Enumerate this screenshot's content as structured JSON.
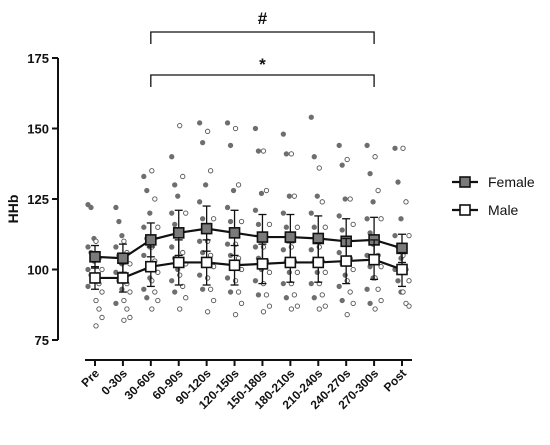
{
  "chart_data": {
    "type": "line",
    "ylabel": "HHb",
    "ylim": [
      75,
      175
    ],
    "yticks": [
      75,
      100,
      125,
      150,
      175
    ],
    "categories": [
      "Pre",
      "0-30s",
      "30-60s",
      "60-90s",
      "90-120s",
      "120-150s",
      "150-180s",
      "180-210s",
      "210-240s",
      "240-270s",
      "270-300s",
      "Post"
    ],
    "legend_position": "right",
    "grid": false,
    "series": [
      {
        "name": "Female",
        "marker": "filled-square",
        "color": "#7a7a7a",
        "mean": [
          104.5,
          104,
          110.5,
          113,
          114.5,
          113,
          111.5,
          111.5,
          111,
          110,
          110.5,
          107.5
        ],
        "sd": [
          4,
          5,
          6,
          8,
          8,
          8,
          8,
          8,
          8,
          8,
          8,
          5
        ],
        "points": [
          [
            123,
            122,
            111,
            108,
            106,
            103,
            100,
            98,
            96,
            94
          ],
          [
            122,
            117,
            112,
            108,
            105,
            102,
            99,
            96,
            93,
            88
          ],
          [
            133,
            128,
            120,
            115,
            111,
            108,
            105,
            100,
            97,
            93,
            90
          ],
          [
            140,
            130,
            126,
            120,
            116,
            112,
            108,
            104,
            100,
            96,
            92
          ],
          [
            152,
            145,
            130,
            124,
            118,
            114,
            110,
            106,
            102,
            98,
            93
          ],
          [
            152,
            144,
            128,
            122,
            117,
            113,
            109,
            105,
            101,
            97,
            92
          ],
          [
            150,
            142,
            127,
            121,
            116,
            112,
            108,
            104,
            100,
            96,
            91
          ],
          [
            148,
            141,
            126,
            120,
            115,
            111,
            107,
            103,
            99,
            95,
            90
          ],
          [
            154,
            140,
            126,
            120,
            115,
            111,
            107,
            103,
            99,
            95,
            90
          ],
          [
            144,
            137,
            125,
            119,
            114,
            110,
            106,
            102,
            98,
            94,
            89
          ],
          [
            144,
            134,
            124,
            118,
            113,
            109,
            105,
            101,
            97,
            93,
            88
          ],
          [
            143,
            131,
            118,
            112,
            108,
            104,
            100,
            96,
            92
          ]
        ]
      },
      {
        "name": "Male",
        "marker": "open-square",
        "color": "#ffffff",
        "mean": [
          97,
          97,
          101,
          102.5,
          102.5,
          101.5,
          102,
          102.5,
          102.5,
          103,
          103.5,
          100
        ],
        "sd": [
          4,
          5,
          7,
          8,
          8,
          7,
          7,
          7,
          7,
          8,
          7,
          6
        ],
        "points": [
          [
            110,
            104,
            100,
            97,
            95,
            92,
            89,
            86,
            83,
            80
          ],
          [
            110,
            106,
            102,
            98,
            95,
            92,
            89,
            86,
            83,
            82
          ],
          [
            135,
            125,
            115,
            108,
            103,
            99,
            96,
            92,
            89,
            86
          ],
          [
            151,
            133,
            120,
            112,
            106,
            102,
            98,
            94,
            90,
            86
          ],
          [
            149,
            135,
            118,
            110,
            105,
            101,
            97,
            93,
            89,
            85
          ],
          [
            150,
            130,
            117,
            109,
            104,
            100,
            96,
            92,
            88,
            84
          ],
          [
            142,
            128,
            116,
            108,
            103,
            99,
            95,
            91,
            87,
            85
          ],
          [
            141,
            126,
            115,
            108,
            103,
            99,
            95,
            91,
            87,
            86
          ],
          [
            136,
            124,
            115,
            108,
            103,
            99,
            95,
            91,
            87,
            86
          ],
          [
            139,
            125,
            116,
            109,
            104,
            100,
            96,
            92,
            88,
            84
          ],
          [
            140,
            128,
            118,
            110,
            105,
            101,
            97,
            93,
            89,
            86
          ],
          [
            143,
            124,
            112,
            105,
            100,
            96,
            92,
            88,
            87
          ]
        ]
      }
    ],
    "annotations": [
      {
        "label": "#",
        "from": "30-60s",
        "to": "270-300s",
        "level": "top"
      },
      {
        "label": "*",
        "from": "30-60s",
        "to": "270-300s",
        "level": "lower"
      }
    ]
  }
}
